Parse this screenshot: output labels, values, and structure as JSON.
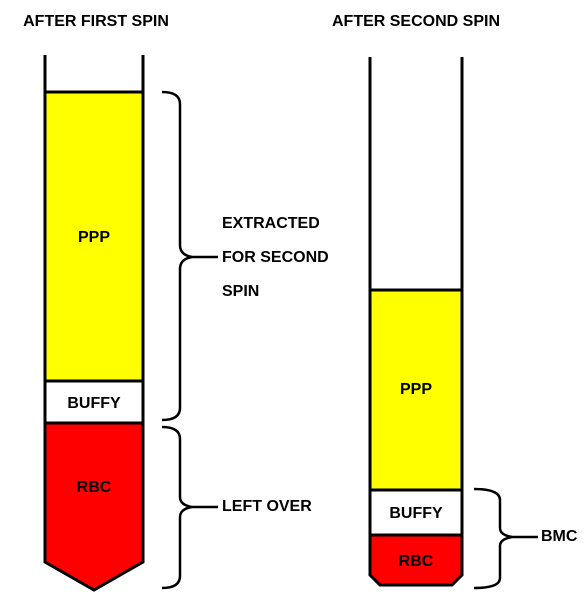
{
  "tubes": [
    {
      "title": "AFTER FIRST SPIN",
      "layers": [
        "PPP",
        "BUFFY",
        "RBC"
      ]
    },
    {
      "title": "AFTER SECOND SPIN",
      "layers": [
        "PPP",
        "BUFFY",
        "RBC"
      ]
    }
  ],
  "annotations": {
    "extracted": [
      "EXTRACTED",
      "FOR SECOND",
      "SPIN"
    ],
    "left_over": "LEFT OVER",
    "bmc": "BMC"
  }
}
